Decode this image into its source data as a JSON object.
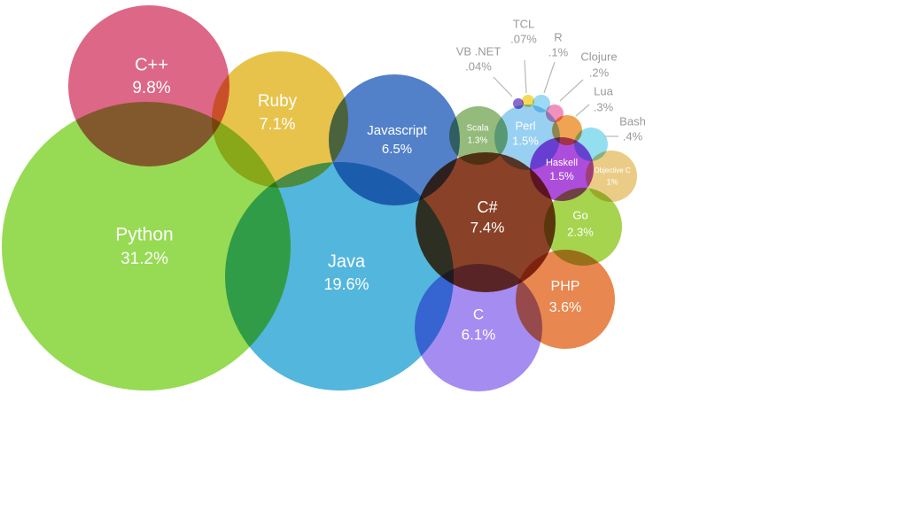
{
  "chart_data": {
    "type": "bubble",
    "unit": "%",
    "bubbles": [
      {
        "label": "Python",
        "value_text": "31.2%",
        "value": 31.2,
        "color": "#8bd740"
      },
      {
        "label": "Java",
        "value_text": "19.6%",
        "value": 19.6,
        "color": "#40aed8"
      },
      {
        "label": "C++",
        "value_text": "9.8%",
        "value": 9.8,
        "color": "#d9577a"
      },
      {
        "label": "Ruby",
        "value_text": "7.1%",
        "value": 7.1,
        "color": "#e6bd39"
      },
      {
        "label": "Javascript",
        "value_text": "6.5%",
        "value": 6.5,
        "color": "#3f73c3"
      },
      {
        "label": "C#",
        "value_text": "7.4%",
        "value": 7.4,
        "color": "#7c2c10"
      },
      {
        "label": "C",
        "value_text": "6.1%",
        "value": 6.1,
        "color": "#9b7ff0"
      },
      {
        "label": "PHP",
        "value_text": "3.6%",
        "value": 3.6,
        "color": "#e57a3c"
      },
      {
        "label": "Go",
        "value_text": "2.3%",
        "value": 2.3,
        "color": "#9ccf3b"
      },
      {
        "label": "Scala",
        "value_text": "1.3%",
        "value": 1.3,
        "color": "#88b26e"
      },
      {
        "label": "Perl",
        "value_text": "1.5%",
        "value": 1.5,
        "color": "#8dcbef"
      },
      {
        "label": "Haskell",
        "value_text": "1.5%",
        "value": 1.5,
        "color": "#a43ad8"
      },
      {
        "label": "Objective C",
        "value_text": "1%",
        "value": 1,
        "color": "#e9c779"
      },
      {
        "label": "Bash",
        "value_text": ".4%",
        "value": 0.4,
        "color": "#87dcee"
      },
      {
        "label": "Lua",
        "value_text": ".3%",
        "value": 0.3,
        "color": "#ec9a3f"
      },
      {
        "label": "Clojure",
        "value_text": ".2%",
        "value": 0.2,
        "color": "#ee84b7"
      },
      {
        "label": "R",
        "value_text": ".1%",
        "value": 0.1,
        "color": "#8fd6f3"
      },
      {
        "label": "TCL",
        "value_text": ".07%",
        "value": 0.07,
        "color": "#f5d547"
      },
      {
        "label": "VB .NET",
        "value_text": ".04%",
        "value": 0.04,
        "color": "#7a5cc9"
      }
    ]
  }
}
